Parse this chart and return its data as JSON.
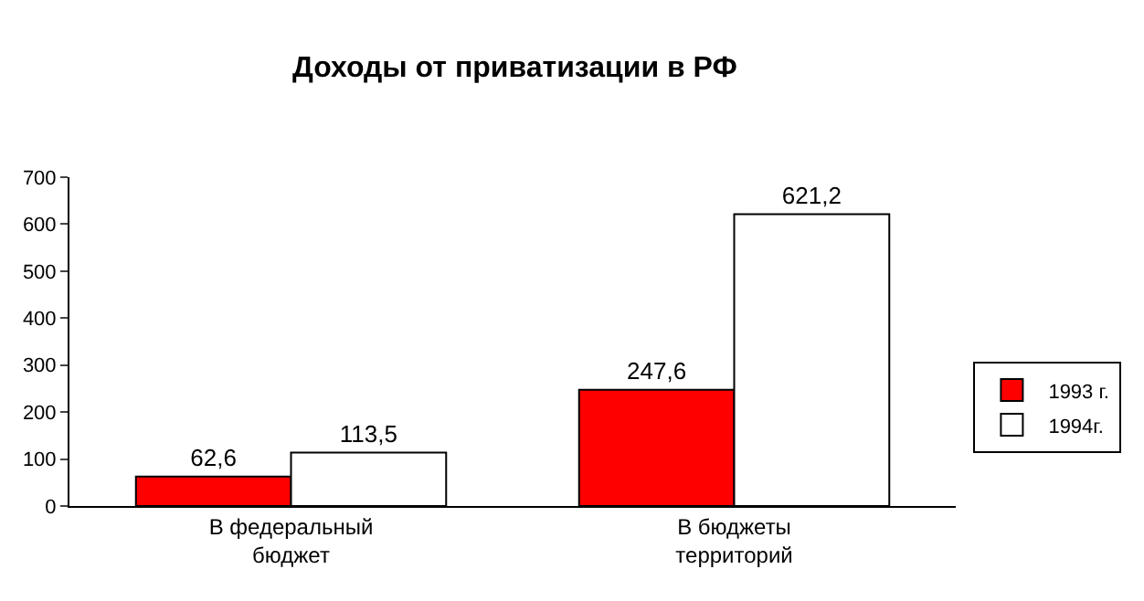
{
  "chart_data": {
    "type": "bar",
    "title": "Доходы от приватизации в РФ",
    "categories": [
      "В федеральный\nбюджет",
      "В бюджеты\nтерриторий"
    ],
    "series": [
      {
        "name": "1993 г.",
        "color": "#ff0000",
        "values": [
          62.6,
          247.6
        ],
        "value_labels": [
          "62,6",
          "247,6"
        ]
      },
      {
        "name": "1994г.",
        "color": "#ffffff",
        "values": [
          113.5,
          621.2
        ],
        "value_labels": [
          "113,5",
          "621,2"
        ]
      }
    ],
    "ylim": [
      0,
      700
    ],
    "yticks": [
      0,
      100,
      200,
      300,
      400,
      500,
      600,
      700
    ],
    "legend": "right"
  }
}
